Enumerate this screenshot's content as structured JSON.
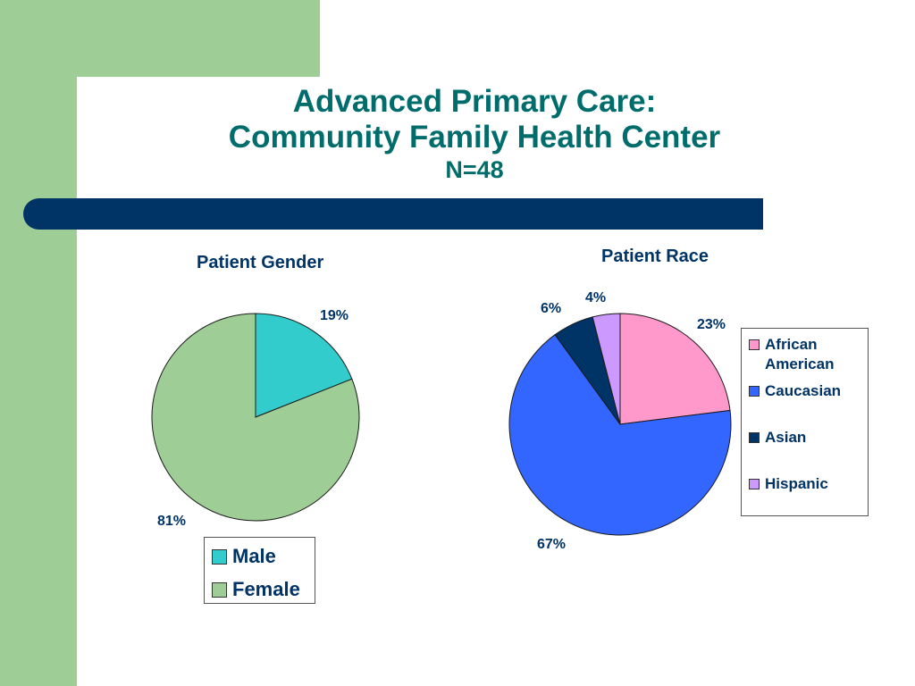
{
  "title": {
    "line1": "Advanced Primary Care:",
    "line2": "Community Family Health Center",
    "subtitle": "N=48"
  },
  "colors": {
    "title": "#006c6c",
    "label": "#003366",
    "green_accent": "#9ecd95",
    "navy_bar": "#003366"
  },
  "chart_data": [
    {
      "type": "pie",
      "title": "Patient Gender",
      "categories": [
        "Male",
        "Female"
      ],
      "values": [
        19,
        81
      ],
      "labels": [
        "19%",
        "81%"
      ],
      "colors": [
        "#33cccc",
        "#9ecd95"
      ],
      "legend_placement": "bottom"
    },
    {
      "type": "pie",
      "title": "Patient Race",
      "categories": [
        "African American",
        "Caucasian",
        "Asian",
        "Hispanic"
      ],
      "legend_lines": [
        [
          "African",
          "American"
        ],
        [
          "Caucasian"
        ],
        [
          "Asian"
        ],
        [
          "Hispanic"
        ]
      ],
      "values": [
        23,
        67,
        6,
        4
      ],
      "labels": [
        "23%",
        "67%",
        "6%",
        "4%"
      ],
      "colors": [
        "#ff99cc",
        "#3366ff",
        "#003366",
        "#cc99ff"
      ],
      "legend_placement": "right"
    }
  ]
}
